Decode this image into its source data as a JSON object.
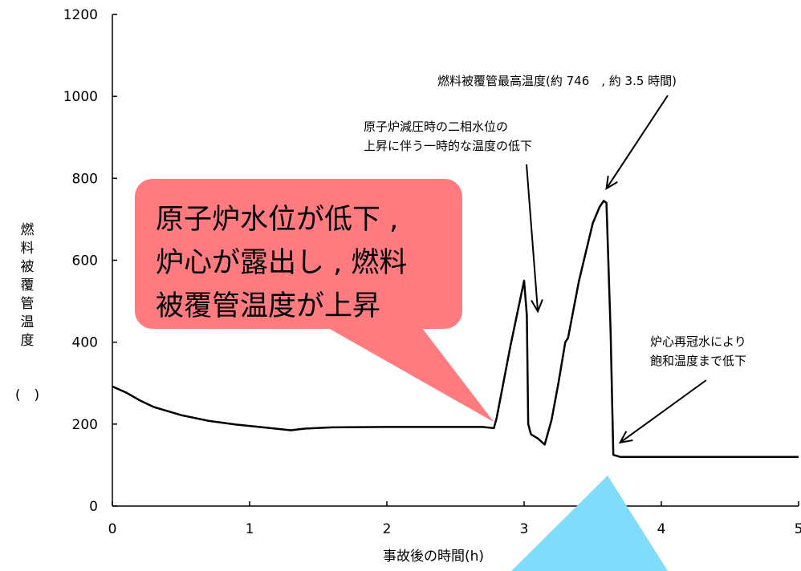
{
  "chart_data": {
    "type": "line",
    "xlabel": "事故後の時間(h)",
    "ylabel_chars": [
      "燃",
      "料",
      "被",
      "覆",
      "管",
      "温",
      "度"
    ],
    "ylabel_unit": "(　)",
    "xlim": [
      0,
      5
    ],
    "ylim": [
      0,
      1200
    ],
    "x_ticks": [
      "0",
      "1",
      "2",
      "3",
      "4",
      "5"
    ],
    "y_ticks": [
      "0",
      "200",
      "400",
      "600",
      "800",
      "1000",
      "1200"
    ],
    "grid": false,
    "legend": "none",
    "series": [
      {
        "color": "#000000",
        "x": [
          0,
          0.1,
          0.2,
          0.3,
          0.5,
          0.7,
          0.9,
          1.1,
          1.3,
          1.35,
          1.4,
          1.6,
          2.0,
          2.4,
          2.7,
          2.78,
          2.8,
          2.9,
          3.0,
          3.02,
          3.03,
          3.05,
          3.1,
          3.15,
          3.2,
          3.25,
          3.3,
          3.32,
          3.4,
          3.5,
          3.55,
          3.58,
          3.6,
          3.63,
          3.65,
          3.7,
          3.8,
          4.0,
          4.5,
          5.0
        ],
        "y": [
          292,
          277,
          258,
          242,
          222,
          208,
          199,
          192,
          185,
          187,
          189,
          192,
          193,
          193,
          193,
          190,
          215,
          390,
          550,
          465,
          200,
          175,
          165,
          150,
          210,
          300,
          400,
          410,
          550,
          690,
          730,
          745,
          740,
          430,
          125,
          120,
          120,
          120,
          120,
          120
        ]
      }
    ],
    "annotations": [
      {
        "lines": [
          "燃料被覆管最高温度(約 746　, 約 3.5 時間)"
        ],
        "arrow_to": [
          3.6,
          775
        ]
      },
      {
        "lines": [
          "原子炉減圧時の二相水位の",
          "上昇に伴う一時的な温度の低下"
        ],
        "arrow_to": [
          3.1,
          475
        ]
      },
      {
        "lines": [
          "炉心再冠水により",
          "飽和温度まで低下"
        ],
        "arrow_to": [
          3.7,
          155
        ]
      }
    ],
    "callout": {
      "lines": [
        "原子炉水位が低下 ,",
        "炉心が露出し , 燃料",
        "被覆管温度が上昇"
      ],
      "color": "#ff7b80",
      "points_to": [
        2.78,
        205
      ]
    },
    "overlay_triangle_color": "#7fdcfa"
  }
}
